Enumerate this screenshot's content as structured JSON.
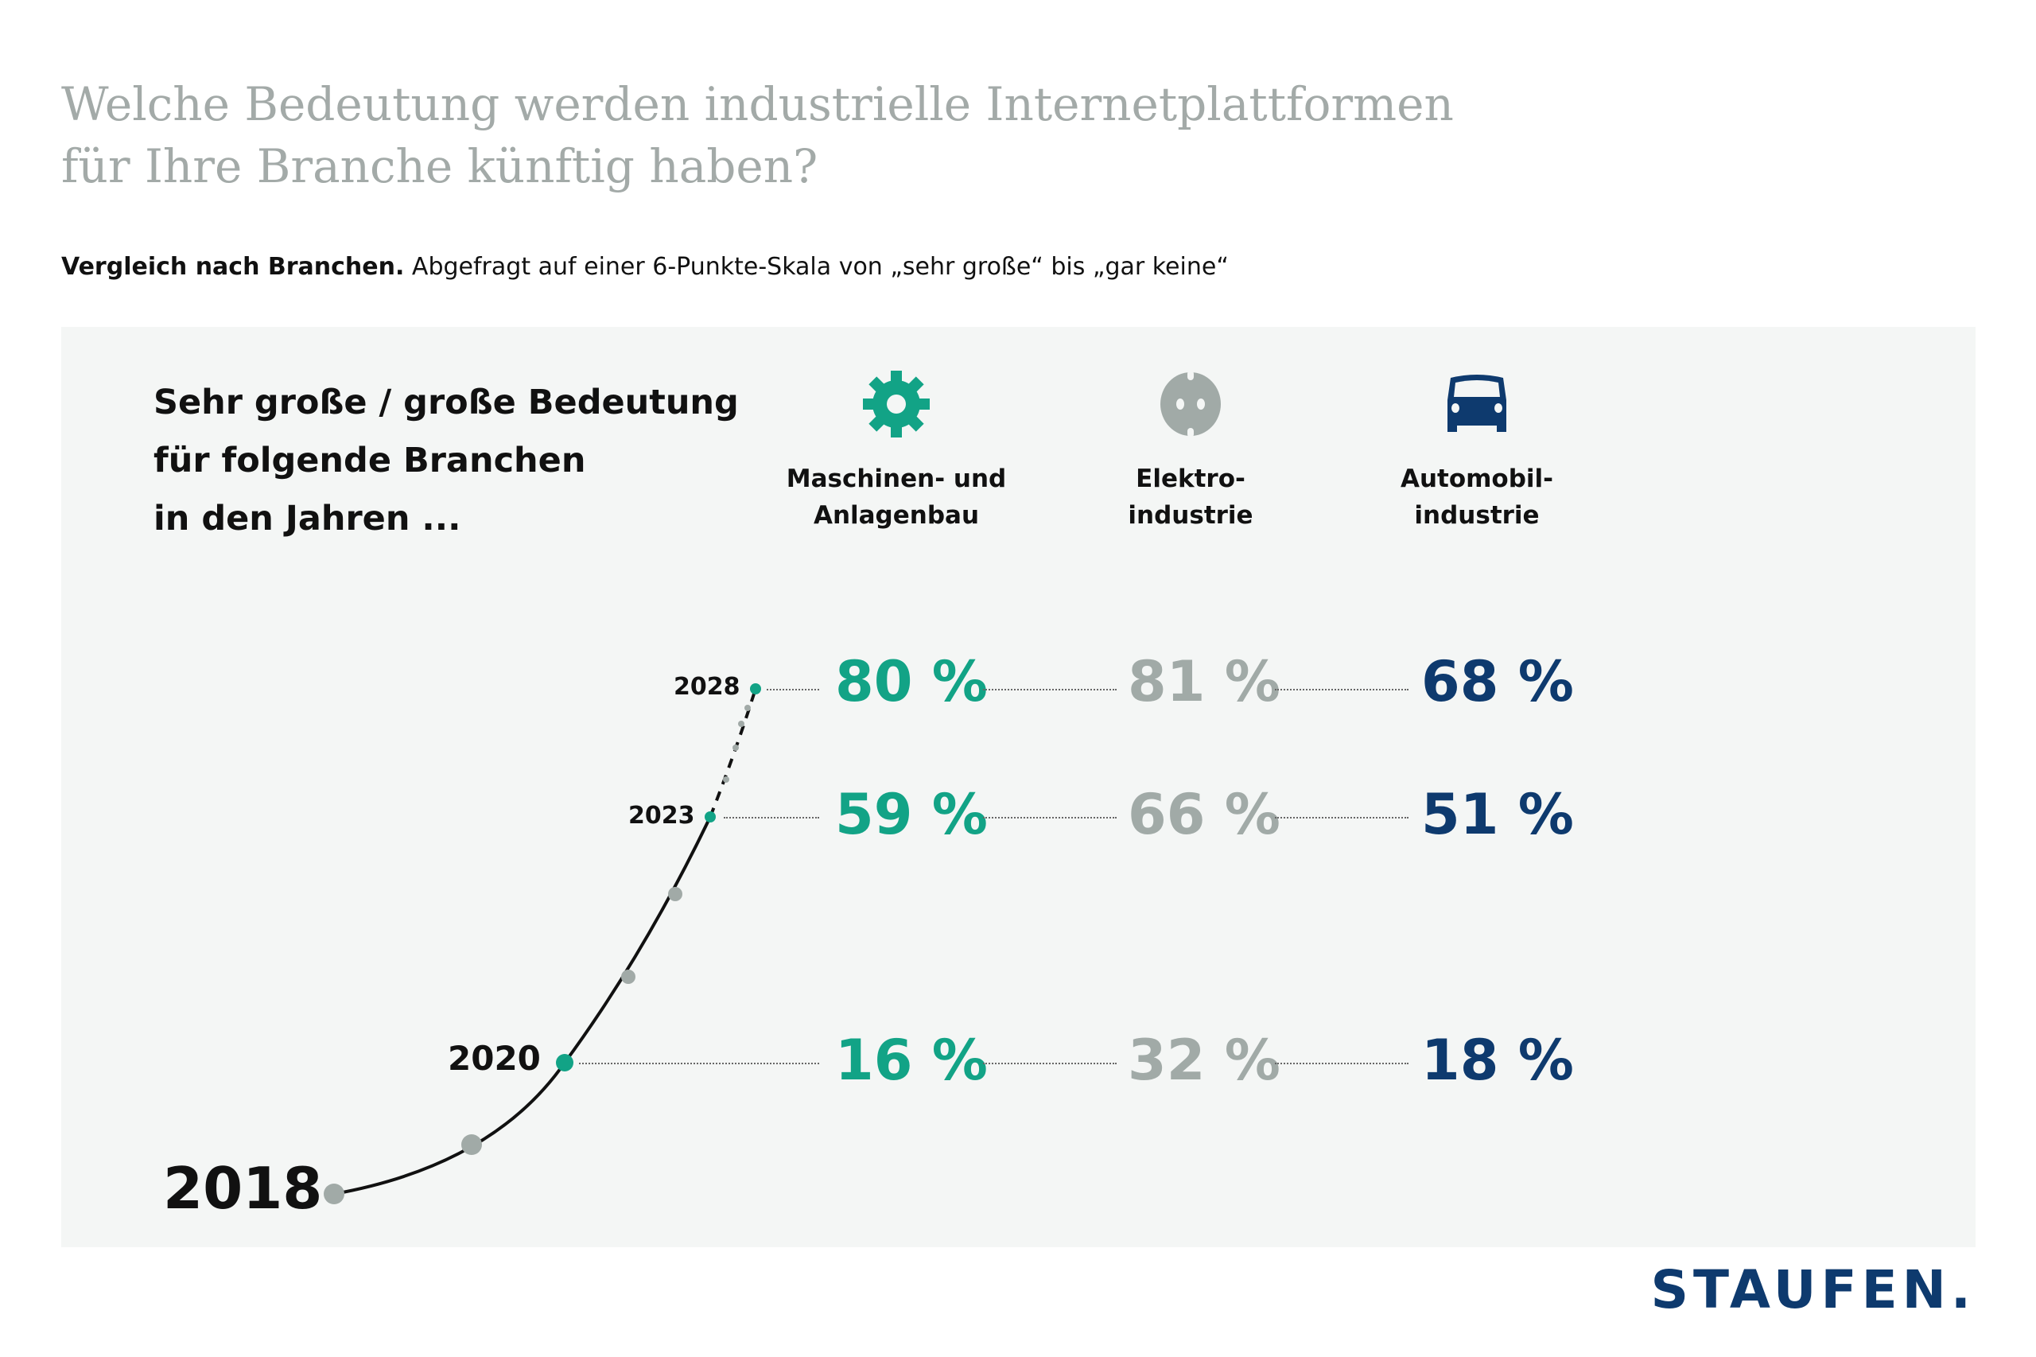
{
  "title": [
    "Welche Bedeutung werden industrielle Internetplattformen",
    "für Ihre Branche künftig haben?"
  ],
  "subtitle": {
    "bold": "Vergleich nach Branchen.",
    "text": " Abgefragt auf einer 6-Punkte-Skala von „sehr große“ bis „gar keine“"
  },
  "heading": [
    "Sehr große / große Bedeutung",
    "für folgende Branchen",
    "in den Jahren ..."
  ],
  "columns": [
    {
      "label1": "Maschinen- und",
      "label2": "Anlagenbau",
      "icon": "gear-icon",
      "color": "#12a386"
    },
    {
      "label1": "Elektro-",
      "label2": "industrie",
      "icon": "power-socket-icon",
      "color": "#a1aaa7"
    },
    {
      "label1": "Automobil-",
      "label2": "industrie",
      "icon": "car-icon",
      "color": "#0e3a6e"
    }
  ],
  "years": {
    "y2018": "2018",
    "y2020": "2020",
    "y2023": "2023",
    "y2028": "2028"
  },
  "rows": [
    {
      "year": "2028",
      "values": [
        "80 %",
        "81 %",
        "68 %"
      ]
    },
    {
      "year": "2023",
      "values": [
        "59 %",
        "66 %",
        "51 %"
      ]
    },
    {
      "year": "2020",
      "values": [
        "16 %",
        "32 %",
        "18 %"
      ]
    }
  ],
  "chart_data": {
    "type": "table",
    "title": "Welche Bedeutung werden industrielle Internetplattformen für Ihre Branche künftig haben?",
    "categories": [
      "Maschinen- und Anlagenbau",
      "Elektroindustrie",
      "Automobilindustrie"
    ],
    "x": [
      "2020",
      "2023",
      "2028"
    ],
    "series": [
      {
        "name": "Maschinen- und Anlagenbau",
        "values": [
          16,
          59,
          80
        ]
      },
      {
        "name": "Elektroindustrie",
        "values": [
          32,
          66,
          81
        ]
      },
      {
        "name": "Automobilindustrie",
        "values": [
          18,
          51,
          68
        ]
      }
    ],
    "unit": "%"
  },
  "logo": "STAUFEN."
}
